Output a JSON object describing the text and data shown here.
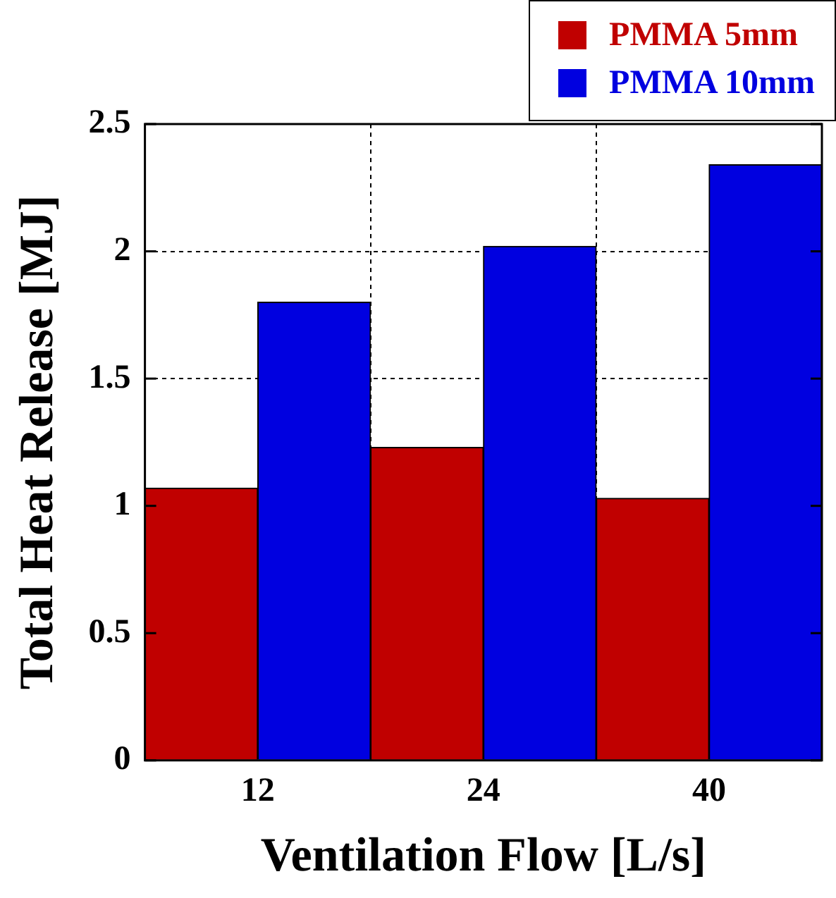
{
  "chart_data": {
    "type": "bar",
    "xlabel": "Ventilation Flow [L/s]",
    "ylabel": "Total Heat Release [MJ]",
    "categories": [
      "12",
      "24",
      "40"
    ],
    "series": [
      {
        "name": "PMMA 5mm",
        "color": "#c00000",
        "values": [
          1.07,
          1.23,
          1.03
        ]
      },
      {
        "name": "PMMA 10mm",
        "color": "#0000e0",
        "values": [
          1.8,
          2.02,
          2.34
        ]
      }
    ],
    "ylim": [
      0,
      2.5
    ],
    "yticks": [
      0,
      0.5,
      1,
      1.5,
      2,
      2.5
    ],
    "grid": true,
    "legend": "top right"
  }
}
